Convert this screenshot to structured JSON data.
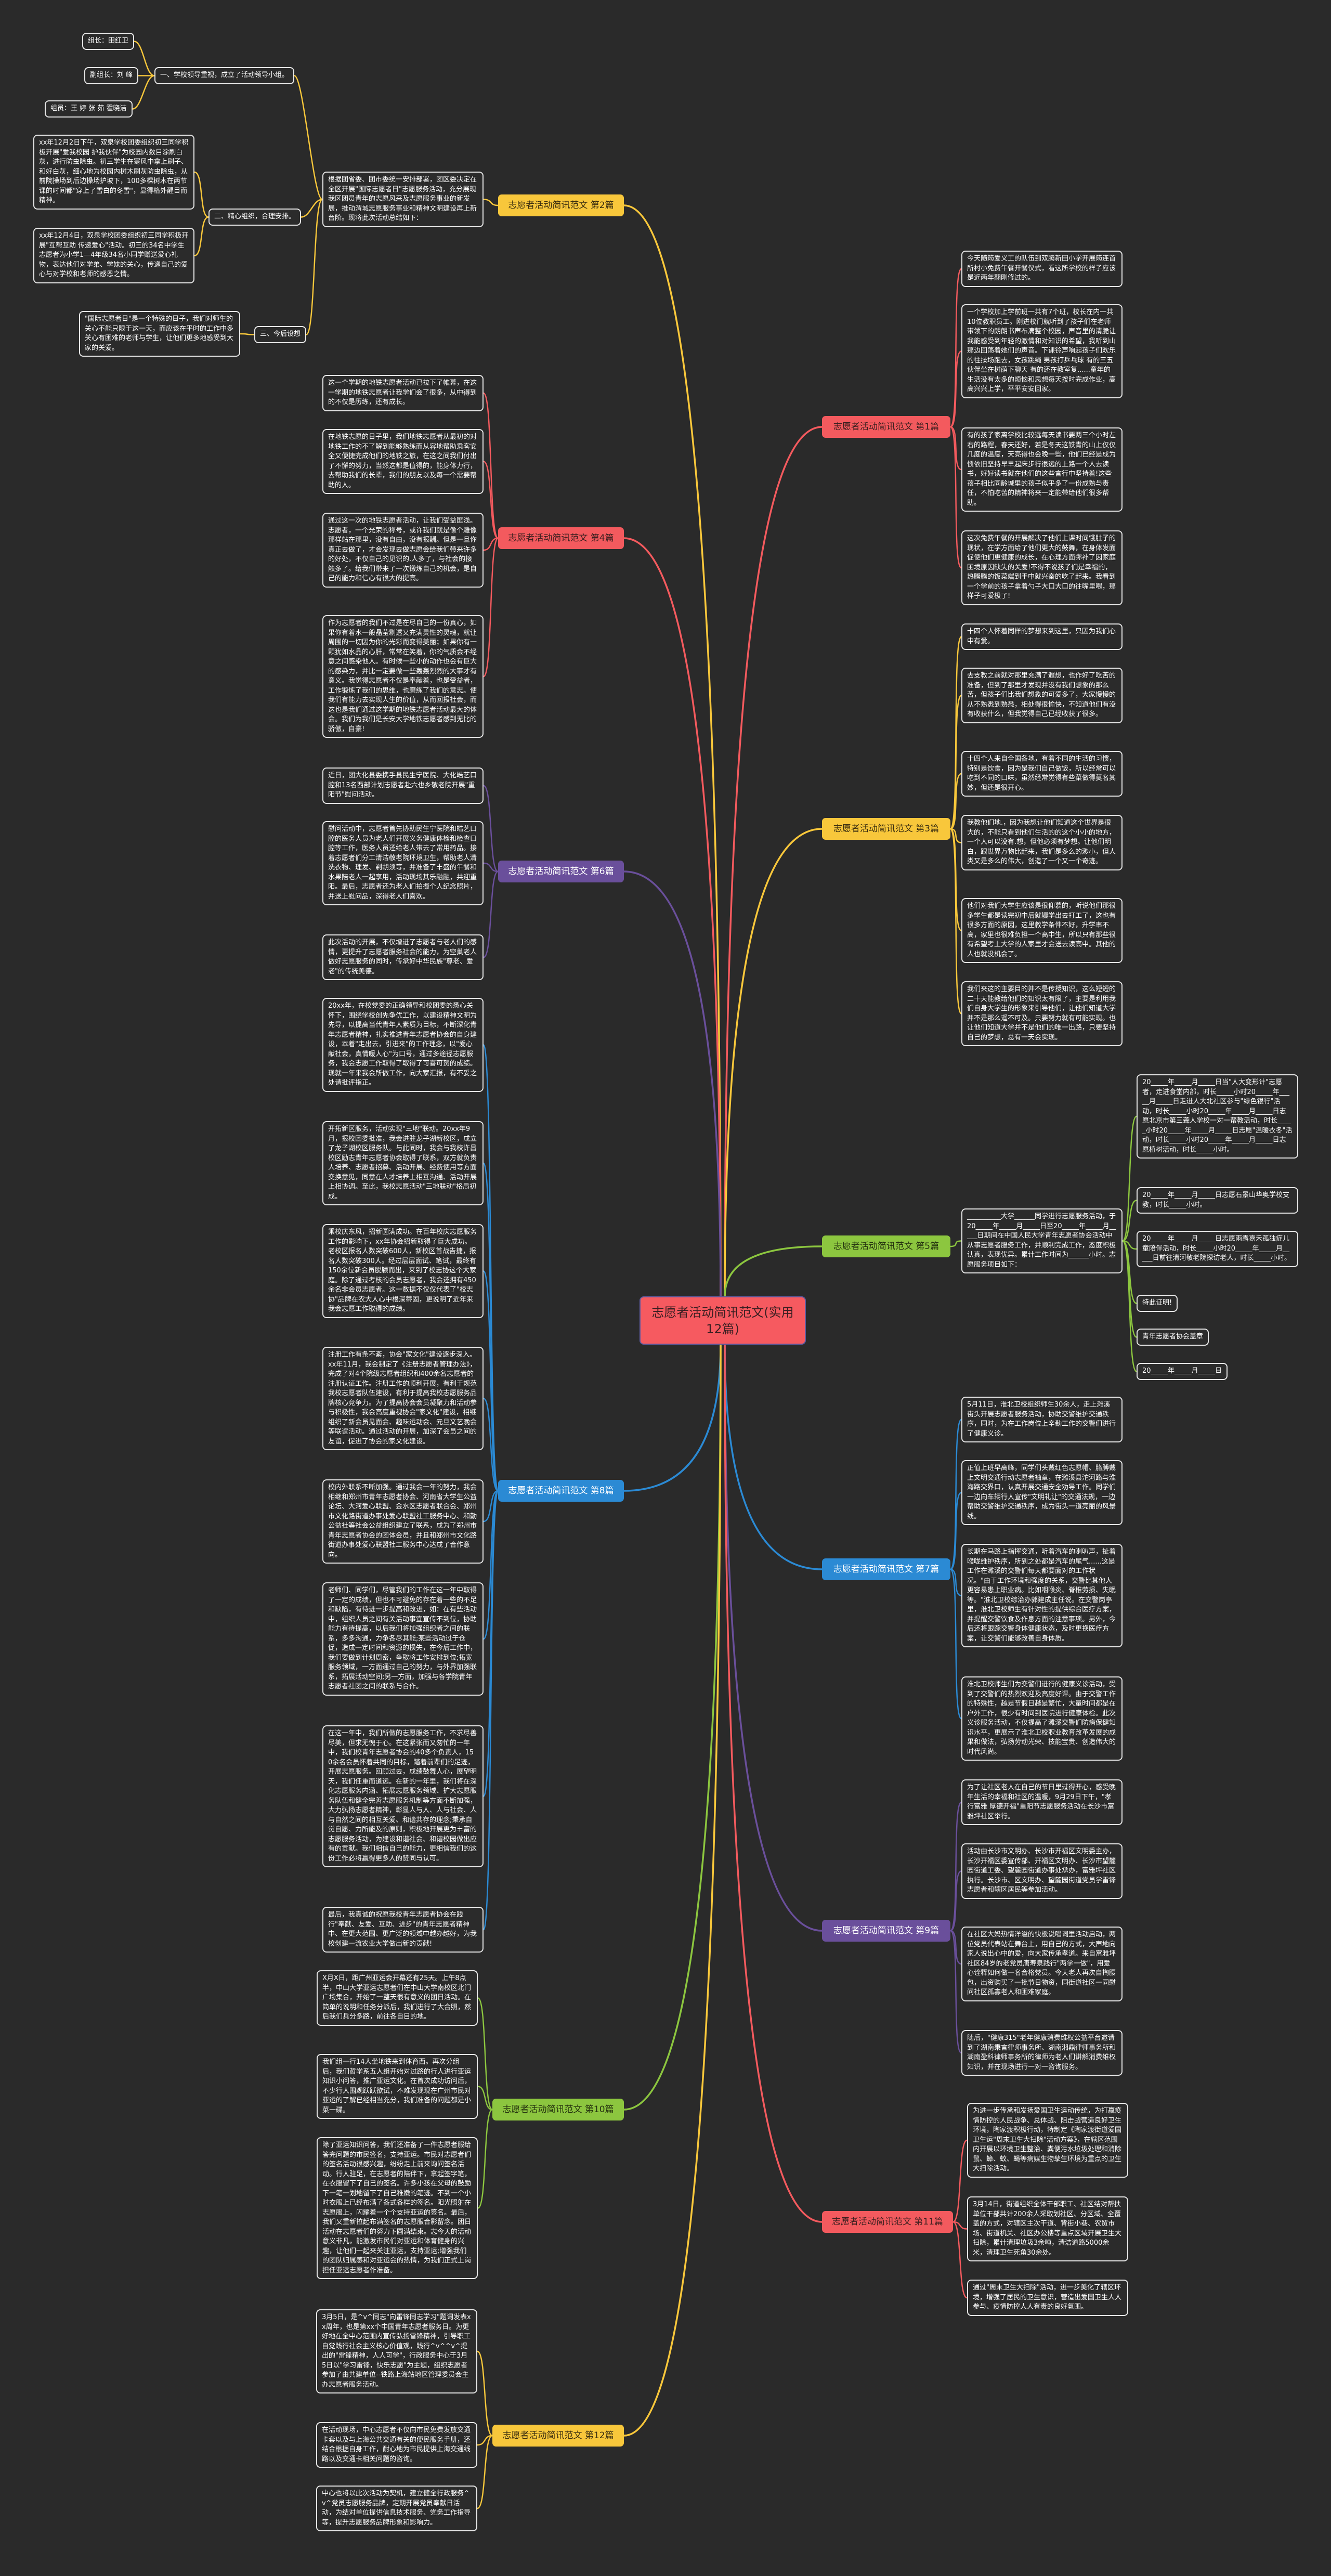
{
  "title": "志愿者活动简讯范文(实用12篇)",
  "colors": {
    "background": "#2a2a2a",
    "red": "#f35a5e",
    "yellow": "#f8c73b",
    "green": "#8cc63f",
    "purple": "#6a4f9b",
    "blue": "#2b8ad4"
  },
  "sections": [
    {
      "label": "志愿者活动简讯范文 第1篇",
      "color": "#f35a5e",
      "items": [
        "今天随筠爱义工的队伍到双腾新田小学开展筠连首所村小免费午餐开餐仪式，看这所学校的样子应该是近两年翻刚修过的。",
        "一个学校加上学前班一共有7个班，校长在内一共10位教职员工。刚进校门就听到了孩子们在老师带领下的朗朗书声布满整个校园，声音里的清脆让我能感受到年轻的激情和对知识的希望，我听到山那边回荡着她们的声音。下课铃声响起孩子们欢乐的往操场跑去，女孩跳绳 男孩打乒乓球 有的三五伙伴坐在树荫下聊天 有的还在教室复......童年的生活没有太多的烦恼和思想每天按时完成作业，高高兴兴上学，平平安安回家。",
        "有的孩子家离学校比较远每天读书要两三个小时左右的路程，春天还好，若是冬天这铁青的山上仅仅几度的温度，天亮得也会晚一些，他们已经是成为惯依旧坚持早早起床步行很远的上路一个人去读书，好好读书就在他们的这些言行中坚持着!这些孩子相比同龄城里的孩子似乎多了一份成熟与责任，不怕吃苦的精神将来一定能带给他们很多帮助。",
        "这次免费午餐的开展解决了他们上课时间饿肚子的现状，在学方面给了他们更大的鼓舞，在身体发面促使他们更健康的成长，在心理方面弥补了因家庭困境原因缺失的关爱!不得不说孩子们是幸福的，热腾腾的饭菜端到手中就兴奋的吃了起来。我看到一个学前的孩子拿着勺子大口大口的往嘴里喂，那样子可爱极了!"
      ]
    },
    {
      "label": "志愿者活动简讯范文 第2篇",
      "color": "#f8c73b",
      "intro": {
        "text": "根据团省委、团市委统一安排部署，团区委决定在全区开展\"国际志愿者日\"志愿服务活动，充分展现我区团员青年的志愿风采及志愿服务事业的新发展，推动渭城志愿服务事业和精神文明建设再上新台阶。现将此次活动总结如下：",
        "points": [
          {
            "text": "一、学校领导重视，成立了活动领导小组。",
            "items": [
              "组长：田红卫",
              "副组长：刘 峰",
              "组员：王 婷 张 茹 霍晓洁"
            ]
          },
          {
            "text": "二、精心组织，合理安排。",
            "items": [
              "xx年12月2日下午，双泉学校团委组织初三同学积极开展\"爱我校园 护我伙伴\"为校园内数目涂刷白灰，进行防虫除虫。初三学生在寒风中拿上刷子、和好白灰，细心地为校园内树木刷灰防虫除虫，从前院操场到后边操场护坡下，100多棵树木在两节课的时间都\"穿上了雪白的冬雪\"，显得格外醒目而精神。",
              "xx年12月4日，双泉学校团委组织初三同学积极开展\"互帮互助 传递爱心\"活动。初三的34名中学生志愿者为小学1—4年级34名小同学赠送爱心礼物，表达他们对学弟、学妹的关心，传递自己的爱心与对学校和老师的感恩之情。"
            ]
          },
          {
            "text": "三、今后设想",
            "items": [
              "\"国际志愿者日\"是一个特殊的日子，我们对师生的关心不能只限于这一天，而应该在平时的工作中多关心有困难的老师与学生，让他们更多地感受到大家的关爱。"
            ]
          }
        ]
      }
    },
    {
      "label": "志愿者活动简讯范文 第3篇",
      "color": "#f8c73b",
      "items": [
        "十四个人怀着同样的梦想来到这里，只因为我们心中有爱。",
        "去支教之前就对那里充满了遐想，也作好了吃苦的准备，但到了那里才发现并没有我们想象的那么苦，但孩子们比我们想象的可爱多了，大家慢慢的从不熟悉到熟悉，相处得很愉快，不知道他们有没有收获什么，但我觉得自己已经收获了很多。",
        "十四个人来自全国各地，有着不同的生活的习惯，特别是饮食，因为是我们自己做饭，所以经常可以吃到不同的口味，虽然经常觉得有些菜做得莫名其妙，但还是很开心。",
        "我教他们地.，因为我想让他们知道这个世界是很大的，不能只看到他们生活的的这个小小的地方，一个人可以没有.想，但他必须有梦想。让他们明白，跟世界万物比起来，我们是多么的渺小，但人类又是多么的伟大，创造了一个又一个奇迹。",
        "他们对我们大学生应该是很仰慕的，听说他们那很多学生都是读完初中后就辍学出去打工了，这也有很多方面的原因，这里教学条件不好，升学率不高，家里也很难负担一个高中生，所以只有那些很有希望考上大学的人家里才会送去读高中。其他的人也就没机会了。",
        "我们来这的主要目的并不是传授知识，这么短短的二十天能教给他们的知识太有限了，主要是利用我们自身大学生的形象来引导他们，让他们知道大学并不是那么遥不可及。只要努力就有可能实现。也让他们知道大学并不是他们的唯一出路，只要坚持自己的梦想，总有一天会实现。"
      ]
    },
    {
      "label": "志愿者活动简讯范文 第4篇",
      "color": "#f35a5e",
      "items": [
        "这一个学期的地铁志愿者活动已拉下了帷幕，在这一学期的地铁志愿者让我学们会了很多，从中得到的不仅是历练，还有成长。",
        "在地铁志愿的日子里，我们地铁志愿者从最初的对地铁工作的不了解到能够熟练而从容地帮助乘客安全又便捷完成他们的地铁之旅，在这之间我们付出了不懈的努力，当然这都是值得的，能身体力行，去帮助我们的长辈，我们的朋友以及每一个需要帮助的人。",
        "通过这一次的地铁志愿者活动，让我们受益匪浅。志愿者，一个光荣的称号，或许我们就是像个雕像那样站在那里，没有自由，没有报酬。但是一旦你真正去做了，才会发现去做志愿会给我们带来许多的好处，不仅自己的见识的.人多了，与社会的接触多了。给我们带来了一次锻炼自己的机会，是自己的能力和信心有很大的提高。",
        "作为志愿者的我们不过是在尽自己的一份真心，如果你有着水一般晶莹剔透又充满灵性的灵魂，就让周围的一切因为你的光彩而变得美丽；如果你有一颗犹如水晶的心肝，常常在笑着，你的气质会不经意之间感染他人。有时候一些小的动作也会有巨大的感染力，并比一定要做一些轰轰烈烈的大事才有意义。我觉得志愿者不仅是奉献着，也是受益者，工作锻炼了我们的思维，也磨练了我们的意志。使我们有能力去实现人生的价值，从而回报社会，而这也是我们通过这学期的地铁志愿者活动最大的体会。我们为我们是长安大学地铁志愿者感到无比的骄傲，自豪!"
      ]
    },
    {
      "label": "志愿者活动简讯范文 第5篇",
      "color": "#8cc63f",
      "intro": {
        "text": "__________大学______同学进行志愿服务活动，于20_____年_____月_____日至20_____年_____月_____日期间在中国人民大学青年志愿者协会活动中从事志愿者服务工作，并顺利完成工作，态度积极认真，表现优异。累计工作时间为______小时。志愿服务项目如下：",
        "items": [
          "20_____年_____月_____日当\"人大变形计\"志愿者，走进食堂内部，时长_____小时20_____年_____月_____日走进人大北社区参与\"绿色银行\"活动，时长_____小时20_____年_____月_____日志愿北京市第三聋人学校一对一帮教活动，时长_____小时20_____年_____月_____日志愿\"温暖衣冬\"活动，时长_____小时20_____年_____月_____日志愿植树活动，时长_____小时。",
          "20_____年_____月_____日志愿石景山华奥学校支教，时长_____小时。",
          "20_____年_____月_____日志愿雨露嘉禾孤独症儿童陪伴活动，时长_____小时20_____年_____月_____日前往清河敬老院探访老人，时长_____小时。",
          "特此证明!",
          "青年志愿者协会盖章",
          "20_____年_____月_____日"
        ]
      }
    },
    {
      "label": "志愿者活动简讯范文 第6篇",
      "color": "#6a4f9b",
      "items": [
        "近日，团大化县委携手县民生宁医院、大化皓艺口腔和13名西部计划志愿者赴六也乡敬老院开展\"重阳节\"慰问活动。",
        "慰问活动中，志愿者首先协助民生宁医院和皓艺口腔的医务人员为老人们开展义务健康体检和检查口腔等工作，医务人员还给老人带去了常用药品。接着志愿者们分工清洁敬老院环境卫生，帮助老人清洗衣物、理发、剃胡须等，并准备了丰盛的午餐和水果陪老人一起享用，活动现场其乐融融，共迎重阳。最后，志愿者还为老人们拍摄个人纪念照片，并送上慰问品，深得老人们喜欢。",
        "此次活动的开展，不仅增进了志愿者与老人们的感情，更提升了志愿者服务社会的能力，为空巢老人做好志愿服务的同时，传承好中华民族\"尊老、爱老\"的传统美德。"
      ]
    },
    {
      "label": "志愿者活动简讯范文 第7篇",
      "color": "#2b8ad4",
      "items": [
        "5月11日，淮北卫校组织师生30余人，走上濉溪街头开展志愿者服务活动，协助交警维护交通秩序，同时，为在工作岗位上辛勤工作的交警们进行了健康义诊。",
        "正值上班早高峰，同学们头戴红色志愿帽、胳膊戴上文明交通行动志愿者袖章，在濉溪县沱河路与淮海路交界口，认真开展交通安全劝导工作。同学们一边向车辆行人宣传\"文明礼让\"的交通法规，一边帮助交警维护交通秩序，成为街头一道亮丽的风景线。",
        "长期在马路上指挥交通，听着汽车的喇叭声，扯着喉咙维护秩序，所到之处都是汽车的尾气......这是工作在濉溪的交警们每天都要面对的工作状况。\"由于工作环境和强度的关系，交警比其他人更容易患上职业病。比如咽喉炎、脊椎劳损、失眠等。\"淮北卫校综治办郭建成主任说。在交警岗亭里，淮北卫校师生有针对性的提供综合医疗方案，并提醒交警饮食及作息方面的注意事项。另外，今后还将跟踪交警身体健康状态，及时更换医疗方案，让交警们能够改善自身体质。",
        "淮北卫校师生们为交警们进行的健康义诊活动，受到了交警们的热烈欢迎及高度好评。由于交警工作的特殊性，越是节假日越是繁忙，大量时间都是在户外工作，很少有时间到医院进行健康体检。此次义诊服务活动，不仅提高了濉溪交警们防病保健知识水平，更展示了淮北卫校职业教育改革发展的成果和做法，弘扬劳动光荣、技能宝贵、创造伟大的时代风尚。"
      ]
    },
    {
      "label": "志愿者活动简讯范文 第8篇",
      "color": "#2b8ad4",
      "items": [
        "20xx年，在校党委的正确领导和校团委的悉心关怀下，围绕学校创先争优工作，以建设精神文明为先导，以提高当代青年人素质为目标，不断深化青年志愿者精神，扎实推进青年志愿者协会的自身建设，本着\"走出去，引进来\"的工作理念，以\"爱心献社会，真情暖人心\"为口号，通过多途径志愿服务，我会志愿工作取得了取得了可喜可贺的成绩。现就一年来我会所做工作，向大家汇报，有不妥之处请批评指正。",
        "开拓新区服务，活动实现\"三地\"联动。20xx年9月，报校团委批准，我会进驻龙子湖新校区，成立了龙子湖校区服务队。与此同时，我会与我校许昌校区励志青年志愿者协会取得了联系，双方就负责人培养、志愿者招募、活动开展、经费使用等方面交换意见，同意在人才培养上相互沟通、活动开展上相协调。至此，我校志愿活动\"三地联动\"格局初成。",
        "乘校庆东风，招新圆满成功。在百年校庆志愿服务工作的影响下，xx年协会招新取得了巨大成功。老校区报名人数突破600人，新校区首战告捷，报名人数突破300人。经过层层面试、笔试，最终有150余位新会员脱颖而出，来到了校志协这个大家庭。除了通过考核的会员志愿者，我会还拥有450余名非会员志愿者。这一数据不仅仅代表了\"校志协\"品牌在农大人心中根深蒂固，更说明了近年来我会志愿工作取得的成绩。",
        "注册工作有条不紊，协会\"家文化\"建设逐步深入。xx年11月，我会制定了《注册志愿者管理办法》，完成了对4个院级志愿者组织和400余名志愿者的注册认证工作。注册工作的顺利开展，有利于规范我校志愿者队伍建设，有利于提高我校志愿服务品牌核心竞争力。为了提高协会会员凝聚力和活动参与积极性，我会高度重视协会\"家文化\"建设，相继组织了新会员见面会、趣味运动会、元旦文艺晚会等联谊活动。通过活动的开展，加深了会员之间的友谊，促进了协会的家文化建设。",
        "校内外联系不断加强。通过我会一年的努力，我会相继和郑州市青年志愿者协会、河南省大学生公益论坛、大河爱心联盟、金水区志愿者联合会、郑州市文化路街道办事处爱心联盟社工服务中心、和勤公益社等社会公益组织建立了联系，成为了郑州市青年志愿者协会的团体会员，并且和郑州市文化路街道办事处爱心联盟社工服务中心达成了合作意向。",
        "老师们、同学们，尽管我们的工作在这一年中取得了一定的成绩，但也不可避免的存在着一些的不足和缺陷，有待进一步提高和改进，如：在有些活动中，组织人员之间有关活动事宜宣传不到位，协助能力有待提高，以后我们将加强组织者之间的联系，多多沟通，力争各尽其能;某些活动过于仓促，造成一定时间和资源的损失，在今后工作中，我们要做到计划周密，争取将工作安排到位;拓宽服务领域，一方面通过自己的努力，与外界加强联系，拓展活动空间;另一方面，加强与各学院青年志愿者社团之间的联系与合作。",
        "在这一年中，我们所做的志愿服务工作，不求尽善尽美，但求无愧于心。在这紧张而又匆忙的一年中，我们校青年志愿者协会的40多个负责人，150余名会员怀着共同的目标，踏着前辈们的足迹，开展志愿服务。回顾过去，成绩鼓舞人心，展望明天，我们任重而道远。在新的一年里，我们将在深化志愿服务内涵、拓展志愿服务领域、扩大志愿服务队伍和健全完善志愿服务机制等方面不断加强，大力弘扬志愿者精神，彰显人与人、人与社会、人与自然之间的相互关爱、和谐共存的理念;秉承自觉自愿、力所能及的原则，积极地开展更为丰富的志愿服务活动，为建设和谐社会、和谐校园做出应有的贡献。我们相信自己的能力，更相信我们的这份工作必将赢得更多人的赞同与认可。",
        "最后，我真诚的祝愿我校青年志愿者协会在践行\"奉献、友爱、互助、进步\"的青年志愿者精神中、在更大范围、更广泛的领域中越办越好，为我校创建一流农业大学做出新的贡献!"
      ]
    },
    {
      "label": "志愿者活动简讯范文 第9篇",
      "color": "#6a4f9b",
      "items": [
        "为了让社区老人在自己的节日里过得开心，感受晚年生活的幸福和社区的温暖，9月29日下午，\"孝行富雅 厚德开福\"重阳节志愿服务活动在长沙市富雅坪社区举行。",
        "活动由长沙市文明办、长沙市开福区文明委主办，长沙开福区委宣传部、开福区文明办、长沙市望麓园街道工委、望麓园街道办事处承办，富雅坪社区执行。长沙市、区文明办、望麓园街道党员学雷锋志愿者和辖区居民等参加活动。",
        "在社区大妈热情洋溢的快板说唱词里活动启动，两位党员代表站在舞台上，用自己的方式，大声地向家人说出心中的爱，向大家传承孝道。来自富雅坪社区84岁的老党员唐寿泉践行\"两学一做\"，用爱心诠释如何做一名合格党员。今天老人再次自掏腰包，出资购买了一批节日物资，同街道社区一同慰问社区孤寡老人和困难家庭。",
        "随后，\"健康315\"老年健康消费维权公益平台邀请到了湖南秉言律师事务所、湖南湘鼎律师事务所和湖南盈科律师事务所的律师为老人们讲解消费维权知识，并在现场进行一对一咨询服务。"
      ]
    },
    {
      "label": "志愿者活动简讯范文 第10篇",
      "color": "#8cc63f",
      "items": [
        "X月X日，距广州亚运会开幕还有25天。上午8点半，中山大学亚运志愿者们在中山大学南校区北门广场集合，开始了一整天很有意义的团日活动。在简单的说明和任务分派后，我们进行了大合照，然后我们兵分多路，前往各自目的地。",
        "我们组一行14人坐地铁来到体育西。再次分组后，我们哲学系五人组开始对过路的行人进行亚运知识小问答，推广亚运文化。在首次成功访问后，不少行人围观跃跃欲试，不难发现现在广州市民对亚运的了解已经相当充分，我们准备的问题都是小菜一碟。",
        "除了亚运知识问答，我们还准备了一件志愿者服给答完问题的市民签名，支持亚运。市民对志愿者们的签名活动很感兴趣，纷纷走上前来询问签名活动。行人驻足，在志愿者的陪伴下，拿起签字笔，在衣服留下了自己的签名。许多小孩在父母的鼓励下一笔一划地留下了自己稚嫩的笔迹。不到一个小时衣服上已经布满了各式各样的签名。阳光照射在志愿服上，闪耀着一个个支持亚运的签名。最后，我们又重新拉起布满签名的志愿服合影留念。团日活动在志愿者们的努力下圆满结束。志今天的活动意义非凡，能激发市民们对亚运和体育健身的兴趣，让他们一起来关注亚运，支持亚运;增强我们的团队归属感和对亚运会的热情，为我们正式上岗担任亚运志愿者作准备。"
      ]
    },
    {
      "label": "志愿者活动简讯范文 第11篇",
      "color": "#f35a5e",
      "items": [
        "为进一步传承和发扬爱国卫生运动传统，为打赢疫情防控的人民战争、总体战、阻击战营造良好卫生环境，陶家渡积极行动，特制定《陶家渡街道爱国卫生运\"周末卫生大扫除\"活动方案》，在辖区范围内开展以环境卫生整治、粪便污水垃圾处理和消除鼠、蟑、蚊、蝇等病媒生物孳生环境为重点的卫生大扫除活动。",
        "3月14日，街道组织全体干部职工、社区结对帮扶单位干部共计200余人采取划社区、分区域、全覆盖的方式，对辖区主次干道、背街小巷、农贸市场、街道机关、社区办公楼等重点区域开展卫生大扫除，累计清理垃圾3余吨，清洁道路5000余米，清理卫生死角30余处。",
        "通过\"周末卫生大扫除\"活动，进一步美化了辖区环境，增强了居民的卫生意识，营造出爱国卫生人人参与、疫情防控人人有责的良好氛围。"
      ]
    },
    {
      "label": "志愿者活动简讯范文 第12篇",
      "color": "#f8c73b",
      "items": [
        "3月5日，是^v^同志\"向雷锋同志学习\"题词发表xx周年，也是第xx个中国青年志愿者服务日。为更好地在全中心范围内宣传弘扬雷锋精神，引导职工自觉践行社会主义核心价值观，践行^v^^v^提出的\"雷锋精神，人人可学\"，行政服务中心于3月5日以\"学习雷锋，快乐志愿\"为主题，组织志愿者参加了由共建单位--铁路上海站地区管理委员会主办志愿者服务活动。",
        "在活动现场，中心志愿者不仅向市民免费发放交通卡套以及与上海公共交通有关的便民服务手册，还结合根据自身工作，耐心地为市民提供上海交通线路以及交通卡相关问题的咨询。",
        "中心也将以此次活动为契机，建立健全行政服务^v^党员志愿服务品牌，定期开展党员奉献日活动，为结对单位提供信息技术服务、党务工作指导等，提升志愿服务品牌形象和影响力。"
      ]
    }
  ]
}
